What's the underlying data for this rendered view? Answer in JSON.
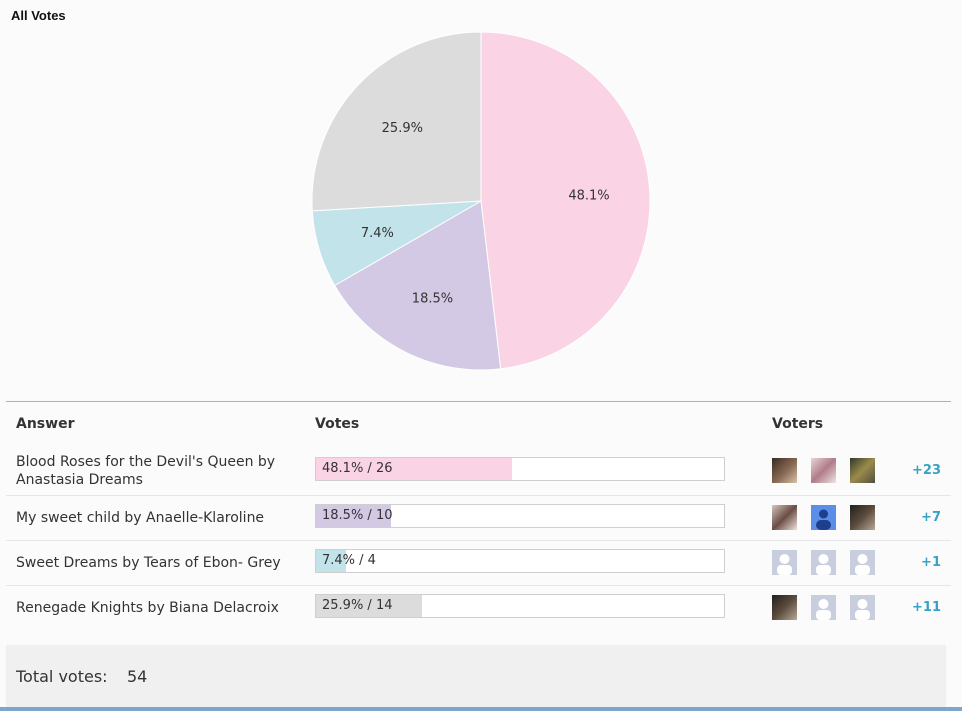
{
  "chart_data": {
    "type": "pie",
    "title": "All Votes",
    "slices": [
      {
        "label": "48.1%",
        "value": 48.1,
        "color": "#fad4e4"
      },
      {
        "label": "18.5%",
        "value": 18.5,
        "color": "#d4c9e4"
      },
      {
        "label": "7.4%",
        "value": 7.4,
        "color": "#c2e3ea"
      },
      {
        "label": "25.9%",
        "value": 25.9,
        "color": "#dcdcdc"
      }
    ]
  },
  "table": {
    "headers": {
      "answer": "Answer",
      "votes": "Votes",
      "voters": "Voters"
    },
    "rows": [
      {
        "answer": "Blood Roses for the Devil's Queen by Anastasia Dreams",
        "votes_text": "48.1% / 26",
        "percent": 48.1,
        "color": "#fad4e4",
        "more": "+23",
        "avatars": [
          "photo",
          "photo2",
          "photo3"
        ]
      },
      {
        "answer": "My sweet child by Anaelle-Klaroline",
        "votes_text": "18.5% / 10",
        "percent": 18.5,
        "color": "#d4c9e4",
        "more": "+7",
        "avatars": [
          "photo4",
          "blue",
          "photo5"
        ]
      },
      {
        "answer": "Sweet Dreams by Tears of Ebon- Grey",
        "votes_text": "7.4% / 4",
        "percent": 7.4,
        "color": "#c2e3ea",
        "more": "+1",
        "avatars": [
          "blank",
          "blank",
          "blank"
        ]
      },
      {
        "answer": "Renegade Knights by Biana Delacroix",
        "votes_text": "25.9% / 14",
        "percent": 25.9,
        "color": "#dcdcdc",
        "more": "+11",
        "avatars": [
          "photo5",
          "blank",
          "blank"
        ]
      }
    ]
  },
  "total": {
    "label": "Total votes:",
    "value": "54"
  }
}
